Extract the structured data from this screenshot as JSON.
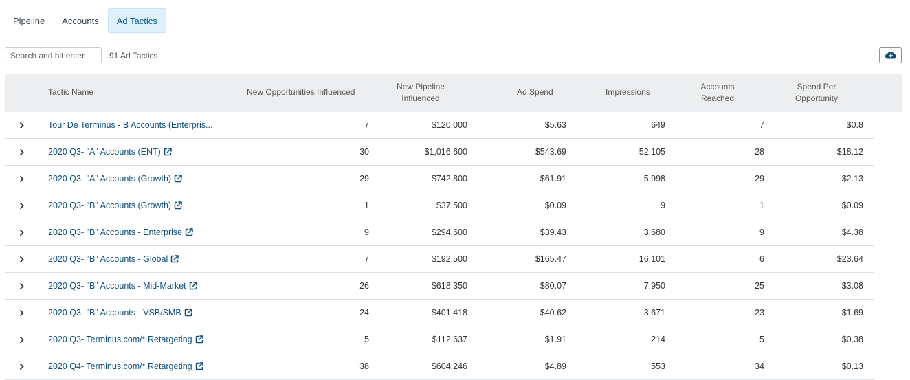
{
  "tabs": [
    {
      "label": "Pipeline",
      "active": false
    },
    {
      "label": "Accounts",
      "active": false
    },
    {
      "label": "Ad Tactics",
      "active": true
    }
  ],
  "search": {
    "placeholder": "Search and hit enter",
    "value": ""
  },
  "count_label": "91 Ad Tactics",
  "icons": {
    "download": "cloud-download-icon",
    "expand": "chevron-right-icon",
    "external": "external-link-icon"
  },
  "colors": {
    "link": "#0d4f7b",
    "active_tab_bg": "#dff0fb",
    "header_bg": "#eceeef"
  },
  "table": {
    "headers": {
      "name": "Tactic Name",
      "opps": "New Opportunities Influenced",
      "pipeline": "New Pipeline Influenced",
      "spend": "Ad Spend",
      "impressions": "Impressions",
      "accounts": "Accounts Reached",
      "spo": "Spend Per Opportunity"
    },
    "rows": [
      {
        "name": "Tour De Terminus - B Accounts (Enterpris...",
        "external": false,
        "opps": "7",
        "pipeline": "$120,000",
        "spend": "$5.63",
        "impressions": "649",
        "accounts": "7",
        "spo": "$0.8"
      },
      {
        "name": "2020 Q3- \"A\" Accounts (ENT)",
        "external": true,
        "opps": "30",
        "pipeline": "$1,016,600",
        "spend": "$543.69",
        "impressions": "52,105",
        "accounts": "28",
        "spo": "$18.12"
      },
      {
        "name": "2020 Q3- \"A\" Accounts (Growth)",
        "external": true,
        "opps": "29",
        "pipeline": "$742,800",
        "spend": "$61.91",
        "impressions": "5,998",
        "accounts": "29",
        "spo": "$2.13"
      },
      {
        "name": "2020 Q3- \"B\" Accounts (Growth)",
        "external": true,
        "opps": "1",
        "pipeline": "$37,500",
        "spend": "$0.09",
        "impressions": "9",
        "accounts": "1",
        "spo": "$0.09"
      },
      {
        "name": "2020 Q3- \"B\" Accounts - Enterprise",
        "external": true,
        "opps": "9",
        "pipeline": "$294,600",
        "spend": "$39.43",
        "impressions": "3,680",
        "accounts": "9",
        "spo": "$4.38"
      },
      {
        "name": "2020 Q3- \"B\" Accounts - Global",
        "external": true,
        "opps": "7",
        "pipeline": "$192,500",
        "spend": "$165.47",
        "impressions": "16,101",
        "accounts": "6",
        "spo": "$23.64"
      },
      {
        "name": "2020 Q3- \"B\" Accounts - Mid-Market",
        "external": true,
        "opps": "26",
        "pipeline": "$618,350",
        "spend": "$80.07",
        "impressions": "7,950",
        "accounts": "25",
        "spo": "$3.08"
      },
      {
        "name": "2020 Q3- \"B\" Accounts - VSB/SMB",
        "external": true,
        "opps": "24",
        "pipeline": "$401,418",
        "spend": "$40.62",
        "impressions": "3,671",
        "accounts": "23",
        "spo": "$1.69"
      },
      {
        "name": "2020 Q3- Terminus.com/* Retargeting",
        "external": true,
        "opps": "5",
        "pipeline": "$112,637",
        "spend": "$1.91",
        "impressions": "214",
        "accounts": "5",
        "spo": "$0.38"
      },
      {
        "name": "2020 Q4- Terminus.com/* Retargeting",
        "external": true,
        "opps": "38",
        "pipeline": "$604,246",
        "spend": "$4.89",
        "impressions": "553",
        "accounts": "34",
        "spo": "$0.13"
      }
    ]
  }
}
